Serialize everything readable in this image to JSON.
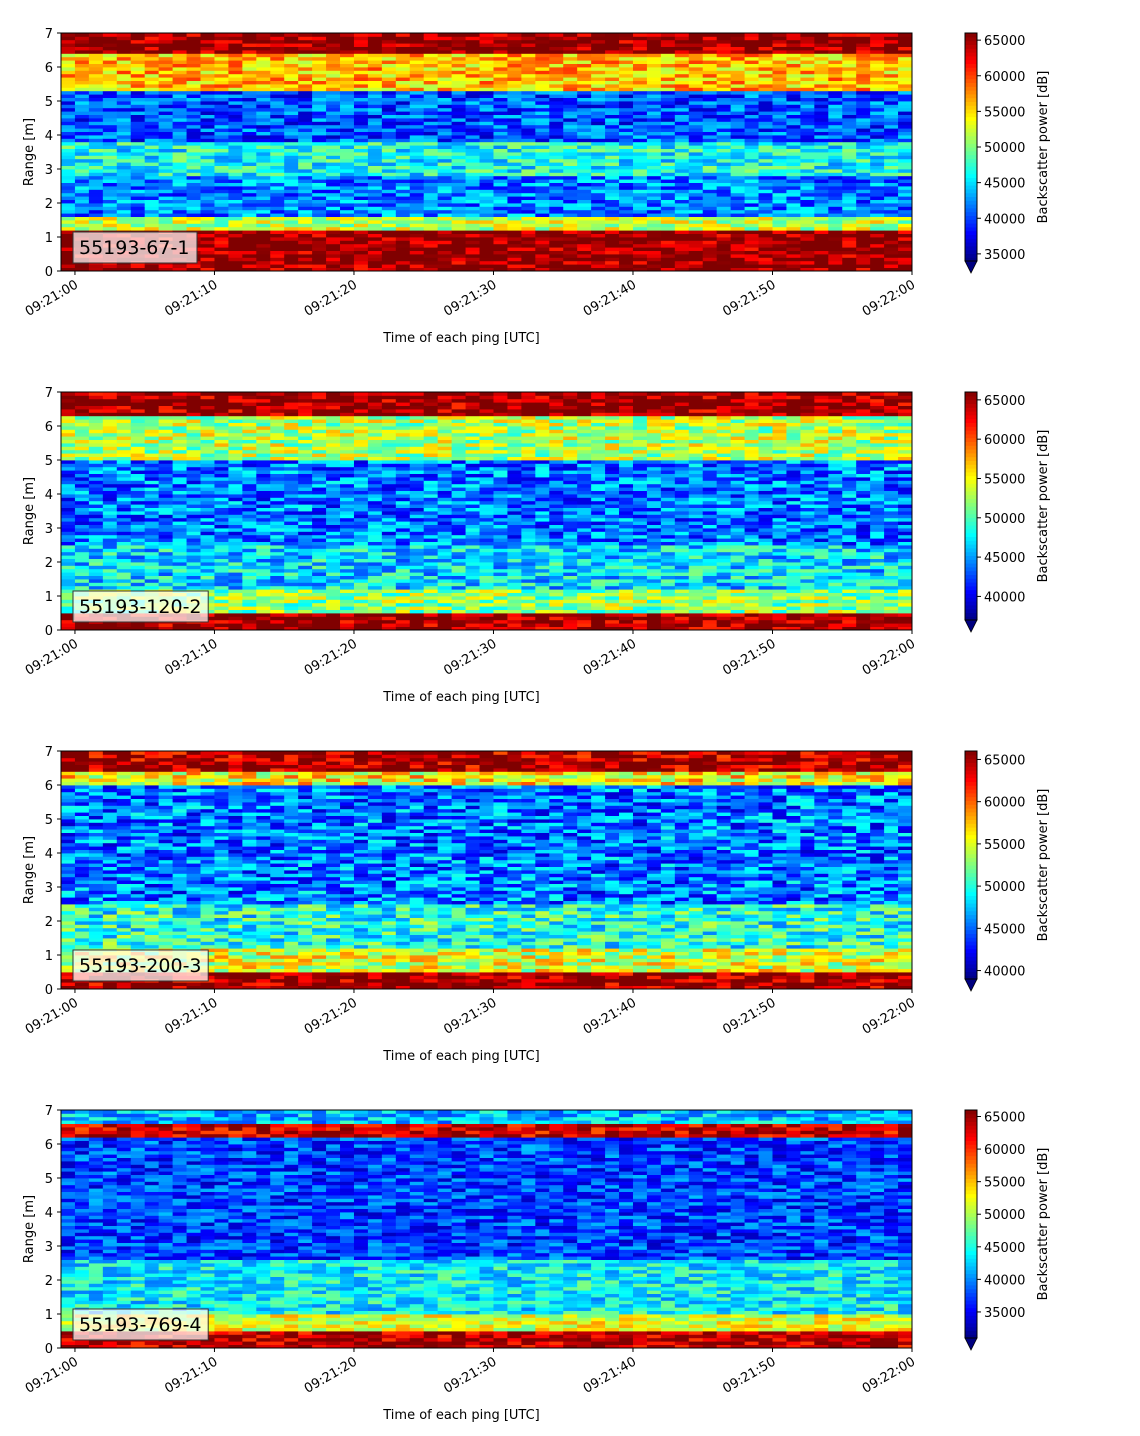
{
  "chart_data": [
    {
      "type": "heatmap",
      "label": "55193-67-1",
      "xlabel": "Time of each ping [UTC]",
      "ylabel": "Range [m]",
      "xlim": [
        "09:20:59",
        "09:22:00"
      ],
      "ylim": [
        0,
        7
      ],
      "xticks": [
        "09:21:00",
        "09:21:10",
        "09:21:20",
        "09:21:30",
        "09:21:40",
        "09:21:50",
        "09:22:00"
      ],
      "yticks": [
        0,
        1,
        2,
        3,
        4,
        5,
        6,
        7
      ],
      "colorbar": {
        "label": "Backscatter power [dB]",
        "vmin": 34000,
        "vmax": 66000,
        "ticks": [
          35000,
          40000,
          45000,
          50000,
          55000,
          60000,
          65000
        ],
        "extend": "min"
      },
      "colormap": "jet",
      "grid": false,
      "profile": [
        {
          "range": [
            0.2,
            1.2
          ],
          "value": 65500
        },
        {
          "range": [
            1.2,
            1.6
          ],
          "value": 52000
        },
        {
          "range": [
            1.6,
            2.8
          ],
          "value": 42000
        },
        {
          "range": [
            2.8,
            3.8
          ],
          "value": 46500
        },
        {
          "range": [
            3.8,
            5.3
          ],
          "value": 40500
        },
        {
          "range": [
            5.3,
            6.4
          ],
          "value": 56000
        },
        {
          "range": [
            6.4,
            7.0
          ],
          "value": 65500
        }
      ]
    },
    {
      "type": "heatmap",
      "label": "55193-120-2",
      "xlabel": "Time of each ping [UTC]",
      "ylabel": "Range [m]",
      "xlim": [
        "09:20:59",
        "09:22:00"
      ],
      "ylim": [
        0,
        7
      ],
      "xticks": [
        "09:21:00",
        "09:21:10",
        "09:21:20",
        "09:21:30",
        "09:21:40",
        "09:21:50",
        "09:22:00"
      ],
      "yticks": [
        0,
        1,
        2,
        3,
        4,
        5,
        6,
        7
      ],
      "colorbar": {
        "label": "Backscatter power [dB]",
        "vmin": 37000,
        "vmax": 66000,
        "ticks": [
          40000,
          45000,
          50000,
          55000,
          60000,
          65000
        ],
        "extend": "min"
      },
      "colormap": "jet",
      "grid": false,
      "profile": [
        {
          "range": [
            0.2,
            0.5
          ],
          "value": 65500
        },
        {
          "range": [
            0.5,
            1.2
          ],
          "value": 52000
        },
        {
          "range": [
            1.2,
            2.5
          ],
          "value": 47000
        },
        {
          "range": [
            2.5,
            5.0
          ],
          "value": 44000
        },
        {
          "range": [
            5.0,
            6.3
          ],
          "value": 53000
        },
        {
          "range": [
            6.3,
            7.0
          ],
          "value": 65500
        }
      ]
    },
    {
      "type": "heatmap",
      "label": "55193-200-3",
      "xlabel": "Time of each ping [UTC]",
      "ylabel": "Range [m]",
      "xlim": [
        "09:20:59",
        "09:22:00"
      ],
      "ylim": [
        0,
        7
      ],
      "xticks": [
        "09:21:00",
        "09:21:10",
        "09:21:20",
        "09:21:30",
        "09:21:40",
        "09:21:50",
        "09:22:00"
      ],
      "yticks": [
        0,
        1,
        2,
        3,
        4,
        5,
        6,
        7
      ],
      "colorbar": {
        "label": "Backscatter power [dB]",
        "vmin": 39000,
        "vmax": 66000,
        "ticks": [
          40000,
          45000,
          50000,
          55000,
          60000,
          65000
        ],
        "extend": "min"
      },
      "colormap": "jet",
      "grid": false,
      "profile": [
        {
          "range": [
            0.2,
            0.5
          ],
          "value": 65500
        },
        {
          "range": [
            0.5,
            1.2
          ],
          "value": 55000
        },
        {
          "range": [
            1.2,
            2.5
          ],
          "value": 50000
        },
        {
          "range": [
            2.5,
            6.0
          ],
          "value": 45500
        },
        {
          "range": [
            6.0,
            6.4
          ],
          "value": 56000
        },
        {
          "range": [
            6.4,
            7.0
          ],
          "value": 65000
        }
      ]
    },
    {
      "type": "heatmap",
      "label": "55193-769-4",
      "xlabel": "Time of each ping [UTC]",
      "ylabel": "Range [m]",
      "xlim": [
        "09:20:59",
        "09:22:00"
      ],
      "ylim": [
        0,
        7
      ],
      "xticks": [
        "09:21:00",
        "09:21:10",
        "09:21:20",
        "09:21:30",
        "09:21:40",
        "09:21:50",
        "09:22:00"
      ],
      "yticks": [
        0,
        1,
        2,
        3,
        4,
        5,
        6,
        7
      ],
      "colorbar": {
        "label": "Backscatter power [dB]",
        "vmin": 31000,
        "vmax": 66000,
        "ticks": [
          35000,
          40000,
          45000,
          50000,
          55000,
          60000,
          65000
        ],
        "extend": "min"
      },
      "colormap": "jet",
      "grid": false,
      "profile": [
        {
          "range": [
            0.2,
            0.5
          ],
          "value": 64000
        },
        {
          "range": [
            0.5,
            1.0
          ],
          "value": 52000
        },
        {
          "range": [
            1.0,
            2.6
          ],
          "value": 44000
        },
        {
          "range": [
            2.6,
            6.2
          ],
          "value": 37500
        },
        {
          "range": [
            6.2,
            6.6
          ],
          "value": 63000
        },
        {
          "range": [
            6.6,
            7.0
          ],
          "value": 42000
        }
      ]
    }
  ]
}
